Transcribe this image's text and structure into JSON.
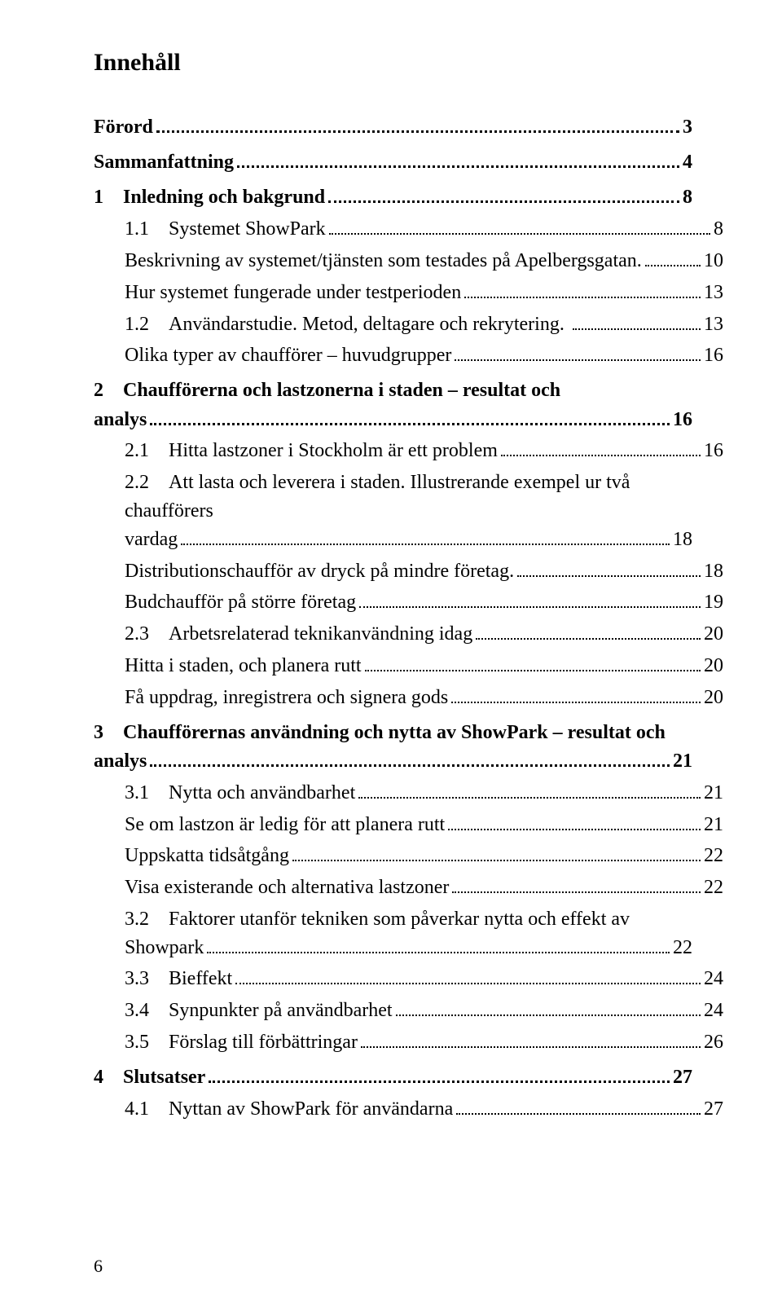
{
  "title": "Innehåll",
  "page_number": "6",
  "toc": [
    {
      "label": "Förord",
      "page": "3",
      "bold": true,
      "indent": 0,
      "wrap": false
    },
    {
      "label": "Sammanfattning",
      "page": "4",
      "bold": true,
      "indent": 0,
      "wrap": false
    },
    {
      "label": "1 Inledning och bakgrund",
      "page": "8",
      "bold": true,
      "indent": 0,
      "wrap": false
    },
    {
      "label": "1.1 Systemet ShowPark",
      "page": "8",
      "bold": false,
      "indent": 1,
      "wrap": false
    },
    {
      "label": "Beskrivning av systemet/tjänsten som testades på Apelbergsgatan.",
      "page": "10",
      "bold": false,
      "indent": 2,
      "wrap": false
    },
    {
      "label": "Hur systemet fungerade under testperioden",
      "page": " 13",
      "bold": false,
      "indent": 2,
      "wrap": false
    },
    {
      "label": "1.2 Användarstudie. Metod, deltagare och rekrytering. ",
      "page": " 13",
      "bold": false,
      "indent": 1,
      "wrap": false
    },
    {
      "label": "Olika typer av chaufförer – huvudgrupper",
      "page": " 16",
      "bold": false,
      "indent": 2,
      "wrap": false
    },
    {
      "label": "2 Chaufförerna och lastzonerna i staden – resultat och analys",
      "page": " 16",
      "bold": true,
      "indent": 0,
      "wrap": true
    },
    {
      "label": "2.1 Hitta lastzoner i Stockholm är ett problem",
      "page": " 16",
      "bold": false,
      "indent": 1,
      "wrap": false
    },
    {
      "label": "2.2 Att lasta och leverera i staden. Illustrerande exempel ur två chaufförers vardag",
      "page": " 18",
      "bold": false,
      "indent": 1,
      "wrap": true
    },
    {
      "label": "Distributionschaufför av dryck på mindre företag.",
      "page": " 18",
      "bold": false,
      "indent": 2,
      "wrap": false
    },
    {
      "label": "Budchaufför på större företag",
      "page": " 19",
      "bold": false,
      "indent": 2,
      "wrap": false
    },
    {
      "label": "2.3 Arbetsrelaterad teknikanvändning idag",
      "page": " 20",
      "bold": false,
      "indent": 1,
      "wrap": false
    },
    {
      "label": "Hitta i staden, och planera rutt",
      "page": " 20",
      "bold": false,
      "indent": 2,
      "wrap": false
    },
    {
      "label": "Få uppdrag, inregistrera och signera gods",
      "page": " 20",
      "bold": false,
      "indent": 2,
      "wrap": false
    },
    {
      "label": "3 Chaufförernas användning och nytta av ShowPark – resultat och analys",
      "page": " 21",
      "bold": true,
      "indent": 0,
      "wrap": true
    },
    {
      "label": "3.1 Nytta och användbarhet",
      "page": " 21",
      "bold": false,
      "indent": 1,
      "wrap": false
    },
    {
      "label": "Se om lastzon är ledig för att planera rutt",
      "page": " 21",
      "bold": false,
      "indent": 2,
      "wrap": false
    },
    {
      "label": "Uppskatta tidsåtgång",
      "page": "22",
      "bold": false,
      "indent": 2,
      "wrap": false
    },
    {
      "label": "Visa existerande och alternativa lastzoner",
      "page": "22",
      "bold": false,
      "indent": 2,
      "wrap": false
    },
    {
      "label": "3.2 Faktorer utanför tekniken som påverkar nytta och effekt av Showpark",
      "page": "22",
      "bold": false,
      "indent": 1,
      "wrap": true
    },
    {
      "label": "3.3 Bieffekt",
      "page": "24",
      "bold": false,
      "indent": 1,
      "wrap": false
    },
    {
      "label": "3.4 Synpunkter på användbarhet",
      "page": "24",
      "bold": false,
      "indent": 1,
      "wrap": false
    },
    {
      "label": "3.5 Förslag till förbättringar",
      "page": "26",
      "bold": false,
      "indent": 1,
      "wrap": false
    },
    {
      "label": "4 Slutsatser",
      "page": " 27",
      "bold": true,
      "indent": 0,
      "wrap": false
    },
    {
      "label": "4.1 Nyttan av ShowPark för användarna",
      "page": "27",
      "bold": false,
      "indent": 1,
      "wrap": false
    }
  ]
}
